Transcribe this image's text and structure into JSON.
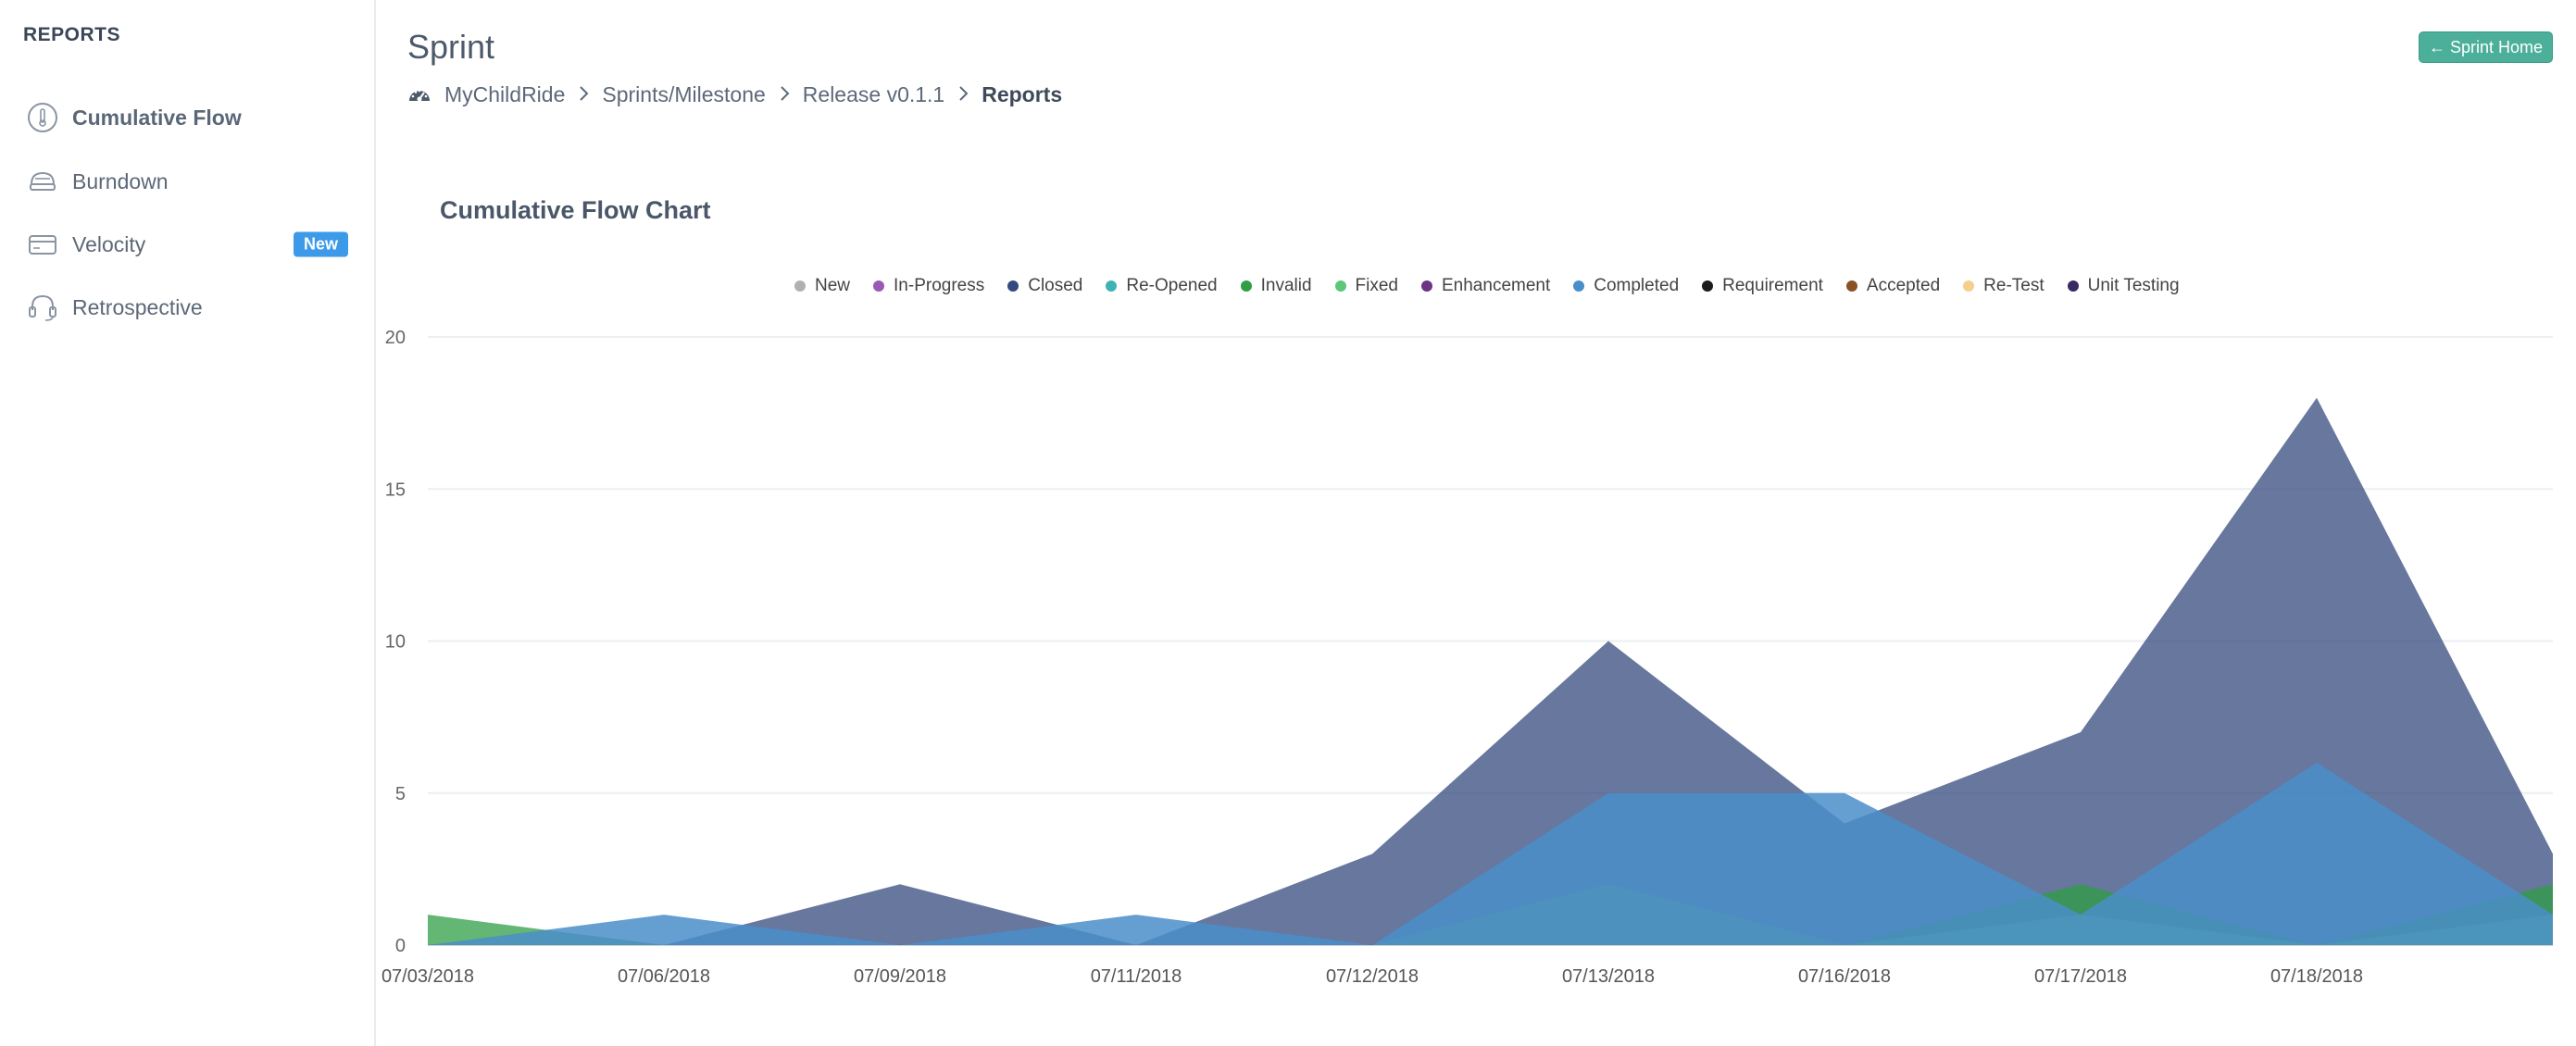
{
  "sidebar": {
    "title": "REPORTS",
    "items": [
      {
        "label": "Cumulative Flow",
        "icon": "thermometer-icon",
        "active": true
      },
      {
        "label": "Burndown",
        "icon": "burndown-icon",
        "active": false
      },
      {
        "label": "Velocity",
        "icon": "card-icon",
        "active": false,
        "badge": "New"
      },
      {
        "label": "Retrospective",
        "icon": "headset-icon",
        "active": false
      }
    ]
  },
  "header": {
    "title": "Sprint",
    "breadcrumb": [
      "MyChildRide",
      "Sprints/Milestone",
      "Release v0.1.1",
      "Reports"
    ],
    "home_button": "← Sprint Home"
  },
  "chart_data": {
    "type": "area",
    "title": "Cumulative Flow Chart",
    "x": [
      "07/03/2018",
      "07/06/2018",
      "07/09/2018",
      "07/11/2018",
      "07/12/2018",
      "07/13/2018",
      "07/16/2018",
      "07/17/2018",
      "07/18/2018",
      ""
    ],
    "ylim": [
      0,
      20
    ],
    "yticks": [
      0,
      5,
      10,
      15,
      20
    ],
    "grid": true,
    "legend_position": "top",
    "series": [
      {
        "name": "New",
        "color": "#b0b0b0",
        "values": [
          0,
          0,
          0,
          0,
          0,
          0,
          0,
          0,
          0,
          0
        ]
      },
      {
        "name": "In-Progress",
        "color": "#9b59b6",
        "values": [
          0,
          0,
          0,
          0,
          0,
          0,
          0,
          0,
          0,
          0
        ]
      },
      {
        "name": "Closed",
        "color": "#34497e",
        "values": [
          0,
          0,
          2,
          0,
          3,
          10,
          4,
          7,
          18,
          3
        ]
      },
      {
        "name": "Re-Opened",
        "color": "#3fb3b3",
        "values": [
          0,
          0,
          0,
          0,
          0,
          0,
          0,
          0,
          0,
          0
        ]
      },
      {
        "name": "Invalid",
        "color": "#2f9e44",
        "values": [
          1,
          0,
          0,
          0,
          0,
          0,
          0,
          2,
          0,
          2
        ]
      },
      {
        "name": "Fixed",
        "color": "#5cc777",
        "values": [
          0,
          0,
          0,
          0,
          0,
          2,
          0,
          1,
          0,
          1
        ]
      },
      {
        "name": "Enhancement",
        "color": "#6c3483",
        "values": [
          0,
          0,
          0,
          0,
          0,
          0,
          0,
          0,
          0,
          0
        ]
      },
      {
        "name": "Completed",
        "color": "#4a8ec9",
        "values": [
          0,
          1,
          0,
          1,
          0,
          5,
          5,
          1,
          6,
          1
        ]
      },
      {
        "name": "Requirement",
        "color": "#1b1b1b",
        "values": [
          0,
          0,
          0,
          0,
          0,
          0,
          0,
          0,
          0,
          0
        ]
      },
      {
        "name": "Accepted",
        "color": "#8a5222",
        "values": [
          0,
          0,
          0,
          0,
          0,
          0,
          0,
          0,
          0,
          0
        ]
      },
      {
        "name": "Re-Test",
        "color": "#f5cf8e",
        "values": [
          0,
          0,
          0,
          0,
          0,
          0,
          0,
          0,
          0,
          0
        ]
      },
      {
        "name": "Unit Testing",
        "color": "#3a2a63",
        "values": [
          0,
          0,
          0,
          0,
          0,
          0,
          0,
          0,
          0,
          0
        ]
      }
    ],
    "draw_order": [
      "Closed",
      "Invalid",
      "Fixed",
      "Completed"
    ]
  }
}
